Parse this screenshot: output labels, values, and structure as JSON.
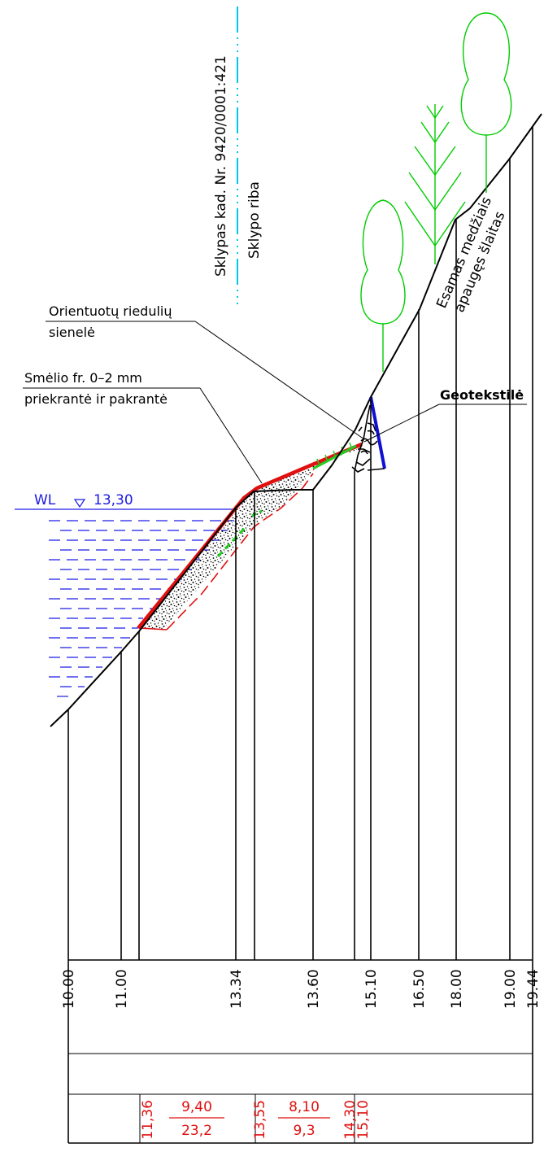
{
  "colors": {
    "ground": "#000000",
    "water": "#1a1ae6",
    "red": "#e01010",
    "trees": "#00cc00",
    "boundary": "#00c8e6",
    "blue_wall": "#1010d0",
    "geotextile_green": "#22cc22"
  },
  "labels": {
    "plot_cadastral": "Sklypas kad. Nr. 9420/0001:421",
    "plot_boundary": "Sklypo riba",
    "boulder_wall_line1": "Orientuotų riedulių",
    "boulder_wall_line2": "sienelė",
    "sand_line1": "Smėlio fr. 0–2 mm",
    "sand_line2": "priekrantė ir pakrantė",
    "geotextile": "Geotekstilė",
    "existing_slope_line1": "Esamas medžiais",
    "existing_slope_line2": "apaugęs šlaitas",
    "water_level_prefix": "WL",
    "water_level_value": "13,30"
  },
  "table": {
    "existing_elevations": [
      "10.00",
      "11.00",
      "13.34",
      "13.60",
      "15.10",
      "16.50",
      "18.00",
      "19.00",
      "19.44"
    ],
    "design_elevations": [
      "11,36",
      "13,55",
      "14,30",
      "15,10"
    ],
    "slopes": [
      {
        "top": "9,40",
        "bottom": "23,2"
      },
      {
        "top": "8,10",
        "bottom": "9,3"
      }
    ]
  }
}
